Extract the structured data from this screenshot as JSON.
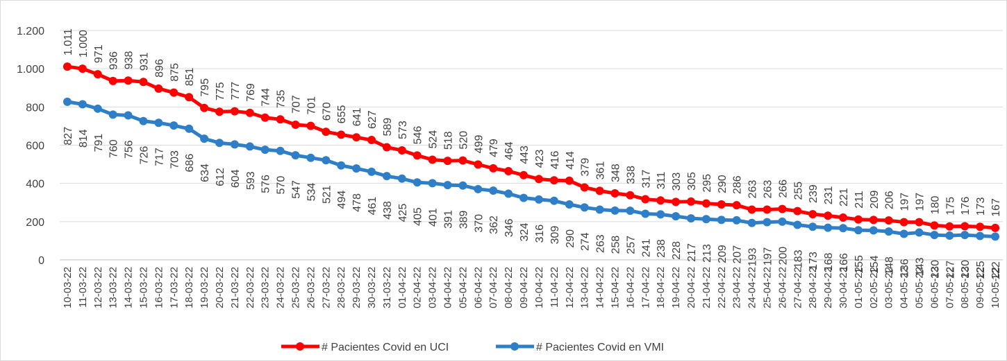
{
  "chart_data": {
    "type": "line",
    "categories": [
      "10-03-22",
      "11-03-22",
      "12-03-22",
      "13-03-22",
      "14-03-22",
      "15-03-22",
      "16-03-22",
      "17-03-22",
      "18-03-22",
      "19-03-22",
      "20-03-22",
      "21-03-22",
      "22-03-22",
      "23-03-22",
      "24-03-22",
      "25-03-22",
      "26-03-22",
      "27-03-22",
      "28-03-22",
      "29-03-22",
      "30-03-22",
      "31-03-22",
      "01-04-22",
      "02-04-22",
      "03-04-22",
      "04-04-22",
      "05-04-22",
      "06-04-22",
      "07-04-22",
      "08-04-22",
      "09-04-22",
      "10-04-22",
      "11-04-22",
      "12-04-22",
      "13-04-22",
      "14-04-22",
      "15-04-22",
      "16-04-22",
      "17-04-22",
      "18-04-22",
      "19-04-22",
      "20-04-22",
      "21-04-22",
      "22-04-22",
      "23-04-22",
      "24-04-22",
      "25-04-22",
      "26-04-22",
      "27-04-22",
      "28-04-22",
      "29-04-22",
      "30-04-22",
      "01-05-22",
      "02-05-22",
      "03-05-22",
      "04-05-22",
      "05-05-22",
      "06-05-22",
      "07-05-22",
      "08-05-22",
      "09-05-22",
      "10-05-22"
    ],
    "series": [
      {
        "name": "# Pacientes Covid en UCI",
        "color": "#ff0000",
        "values": [
          1011,
          1000,
          971,
          936,
          938,
          931,
          896,
          875,
          851,
          795,
          775,
          777,
          769,
          744,
          735,
          707,
          701,
          670,
          655,
          641,
          627,
          589,
          573,
          546,
          524,
          518,
          520,
          499,
          479,
          464,
          443,
          423,
          416,
          414,
          379,
          361,
          348,
          338,
          317,
          311,
          303,
          305,
          295,
          290,
          286,
          263,
          263,
          266,
          255,
          239,
          231,
          221,
          211,
          209,
          206,
          197,
          197,
          180,
          175,
          176,
          173,
          167
        ],
        "value_labels": [
          "1.011",
          "1.000",
          "971",
          "936",
          "938",
          "931",
          "896",
          "875",
          "851",
          "795",
          "775",
          "777",
          "769",
          "744",
          "735",
          "707",
          "701",
          "670",
          "655",
          "641",
          "627",
          "589",
          "573",
          "546",
          "524",
          "518",
          "520",
          "499",
          "479",
          "464",
          "443",
          "423",
          "416",
          "414",
          "379",
          "361",
          "348",
          "338",
          "317",
          "311",
          "303",
          "305",
          "295",
          "290",
          "286",
          "263",
          "263",
          "266",
          "255",
          "239",
          "231",
          "221",
          "211",
          "209",
          "206",
          "197",
          "197",
          "180",
          "175",
          "176",
          "173",
          "167"
        ]
      },
      {
        "name": "# Pacientes Covid en VMI",
        "color": "#2f7fc8",
        "values": [
          827,
          814,
          791,
          760,
          756,
          726,
          717,
          703,
          686,
          634,
          612,
          604,
          593,
          576,
          570,
          547,
          534,
          521,
          494,
          478,
          461,
          438,
          425,
          405,
          401,
          391,
          389,
          370,
          362,
          346,
          324,
          316,
          309,
          290,
          274,
          263,
          258,
          257,
          241,
          238,
          228,
          217,
          213,
          209,
          207,
          193,
          197,
          200,
          183,
          173,
          168,
          166,
          155,
          154,
          148,
          136,
          143,
          130,
          127,
          130,
          125,
          122
        ]
      }
    ],
    "ylim": [
      0,
      1200
    ],
    "yticks": [
      0,
      200,
      400,
      600,
      800,
      {
        "value": 1000,
        "label": "1.000"
      },
      {
        "value": 1200,
        "label": "1.200"
      }
    ],
    "grid": true,
    "legend": "bottom"
  }
}
